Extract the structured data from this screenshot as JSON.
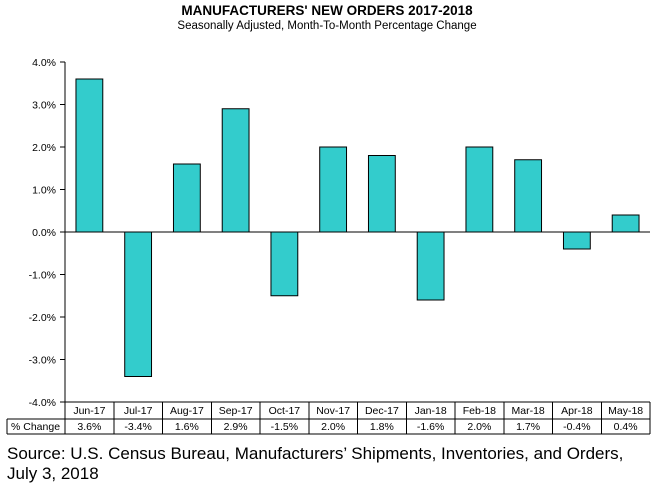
{
  "chart_data": {
    "type": "bar",
    "title": "MANUFACTURERS' NEW ORDERS 2017-2018",
    "subtitle": "Seasonally Adjusted,  Month-To-Month  Percentage  Change",
    "categories": [
      "Jun-17",
      "Jul-17",
      "Aug-17",
      "Sep-17",
      "Oct-17",
      "Nov-17",
      "Dec-17",
      "Jan-18",
      "Feb-18",
      "Mar-18",
      "Apr-18",
      "May-18"
    ],
    "values": [
      3.6,
      -3.4,
      1.6,
      2.9,
      -1.5,
      2.0,
      1.8,
      -1.6,
      2.0,
      1.7,
      -0.4,
      0.4
    ],
    "ylim": [
      -4.0,
      4.0
    ],
    "yticks": [
      4.0,
      3.0,
      2.0,
      1.0,
      0.0,
      -1.0,
      -2.0,
      -3.0,
      -4.0
    ],
    "ytick_labels": [
      "4.0%",
      "3.0%",
      "2.0%",
      "1.0%",
      "0.0%",
      "-1.0%",
      "-2.0%",
      "-3.0%",
      "-4.0%"
    ],
    "table_row_label": "% Change",
    "table_values": [
      "3.6%",
      "-3.4%",
      "1.6%",
      "2.9%",
      "-1.5%",
      "2.0%",
      "1.8%",
      "-1.6%",
      "2.0%",
      "1.7%",
      "-0.4%",
      "0.4%"
    ],
    "bar_color": "#33CCCC",
    "grid": false,
    "legend": "none"
  },
  "source": "Source: U.S. Census Bureau, Manufacturers’ Shipments, Inventories, and Orders, July 3, 2018"
}
